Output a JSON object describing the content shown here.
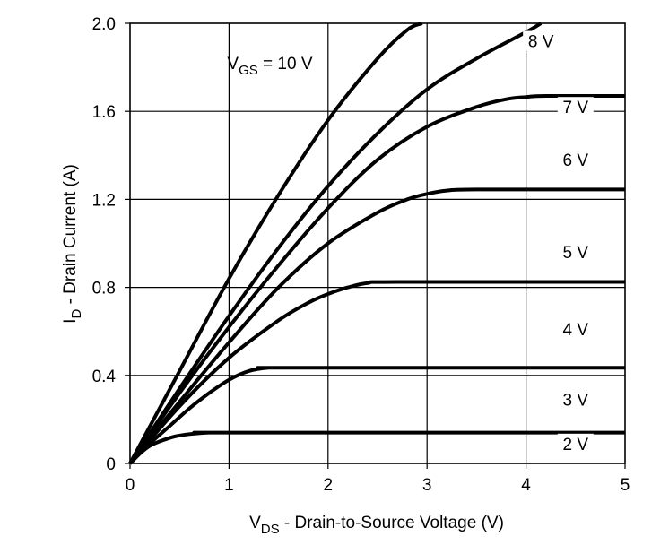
{
  "chart_data": {
    "type": "line",
    "title": "",
    "xlabel": {
      "main": "V",
      "sub": "DS",
      "rest": " - Drain-to-Source Voltage (V)"
    },
    "ylabel": {
      "main": "I",
      "sub": "D",
      "rest": " - Drain Current (A)"
    },
    "xlim": [
      0,
      5
    ],
    "ylim": [
      0,
      2.0
    ],
    "grid": true,
    "legend": "none",
    "x_ticks": [
      {
        "value": 0,
        "label": "0"
      },
      {
        "value": 1,
        "label": "1"
      },
      {
        "value": 2,
        "label": "2"
      },
      {
        "value": 3,
        "label": "3"
      },
      {
        "value": 4,
        "label": "4"
      },
      {
        "value": 5,
        "label": "5"
      }
    ],
    "y_ticks": [
      {
        "value": 0,
        "label": "0"
      },
      {
        "value": 0.4,
        "label": "0.4"
      },
      {
        "value": 0.8,
        "label": "0.8"
      },
      {
        "value": 1.2,
        "label": "1.2"
      },
      {
        "value": 1.6,
        "label": "1.6"
      },
      {
        "value": 2.0,
        "label": "2.0"
      }
    ],
    "annotation": {
      "main": "V",
      "sub": "GS",
      "rest": " = 10 V",
      "x": 1.0,
      "y": 1.82
    },
    "series": [
      {
        "name": "2 V",
        "label_xy": [
          4.5,
          0.07
        ],
        "x": [
          0,
          0.1,
          0.2,
          0.3,
          0.45,
          0.6,
          0.8,
          1.0,
          5.0
        ],
        "y": [
          0,
          0.045,
          0.08,
          0.1,
          0.122,
          0.133,
          0.14,
          0.14,
          0.14
        ]
      },
      {
        "name": "3 V",
        "label_xy": [
          4.5,
          0.27
        ],
        "x": [
          0,
          0.2,
          0.4,
          0.6,
          0.8,
          1.0,
          1.2,
          1.4,
          1.6,
          5.0
        ],
        "y": [
          0,
          0.09,
          0.17,
          0.25,
          0.32,
          0.38,
          0.42,
          0.435,
          0.435,
          0.435
        ]
      },
      {
        "name": "4 V",
        "label_xy": [
          4.5,
          0.59
        ],
        "x": [
          0,
          0.5,
          1.0,
          1.5,
          1.8,
          2.0,
          2.2,
          2.4,
          2.7,
          5.0
        ],
        "y": [
          0,
          0.26,
          0.48,
          0.65,
          0.73,
          0.77,
          0.8,
          0.82,
          0.825,
          0.825
        ]
      },
      {
        "name": "5 V",
        "label_xy": [
          4.5,
          0.94
        ],
        "x": [
          0,
          0.5,
          1.0,
          1.5,
          2.0,
          2.5,
          2.8,
          3.0,
          3.2,
          3.5,
          5.0
        ],
        "y": [
          0,
          0.28,
          0.55,
          0.8,
          1.0,
          1.14,
          1.2,
          1.225,
          1.24,
          1.245,
          1.245
        ]
      },
      {
        "name": "6 V",
        "label_xy": [
          4.5,
          1.36
        ],
        "x": [
          0,
          0.5,
          1.0,
          1.5,
          2.0,
          2.5,
          3.0,
          3.5,
          3.8,
          4.0,
          4.2,
          5.0
        ],
        "y": [
          0,
          0.32,
          0.62,
          0.9,
          1.16,
          1.38,
          1.53,
          1.62,
          1.655,
          1.665,
          1.67,
          1.67
        ]
      },
      {
        "name": "7 V",
        "label_xy": [
          4.5,
          1.6
        ],
        "x": [
          0,
          0.5,
          1.0,
          1.5,
          2.0,
          2.5,
          3.0,
          3.5,
          4.0,
          4.15
        ],
        "y": [
          0,
          0.34,
          0.67,
          0.98,
          1.26,
          1.5,
          1.7,
          1.84,
          1.96,
          2.0
        ]
      },
      {
        "name": "8 V",
        "label_xy": [
          4.15,
          1.9
        ],
        "x": [
          0,
          0.5,
          1.0,
          1.5,
          2.0,
          2.5,
          2.8,
          2.95
        ],
        "y": [
          0,
          0.42,
          0.84,
          1.22,
          1.56,
          1.84,
          1.97,
          2.0
        ]
      }
    ]
  }
}
